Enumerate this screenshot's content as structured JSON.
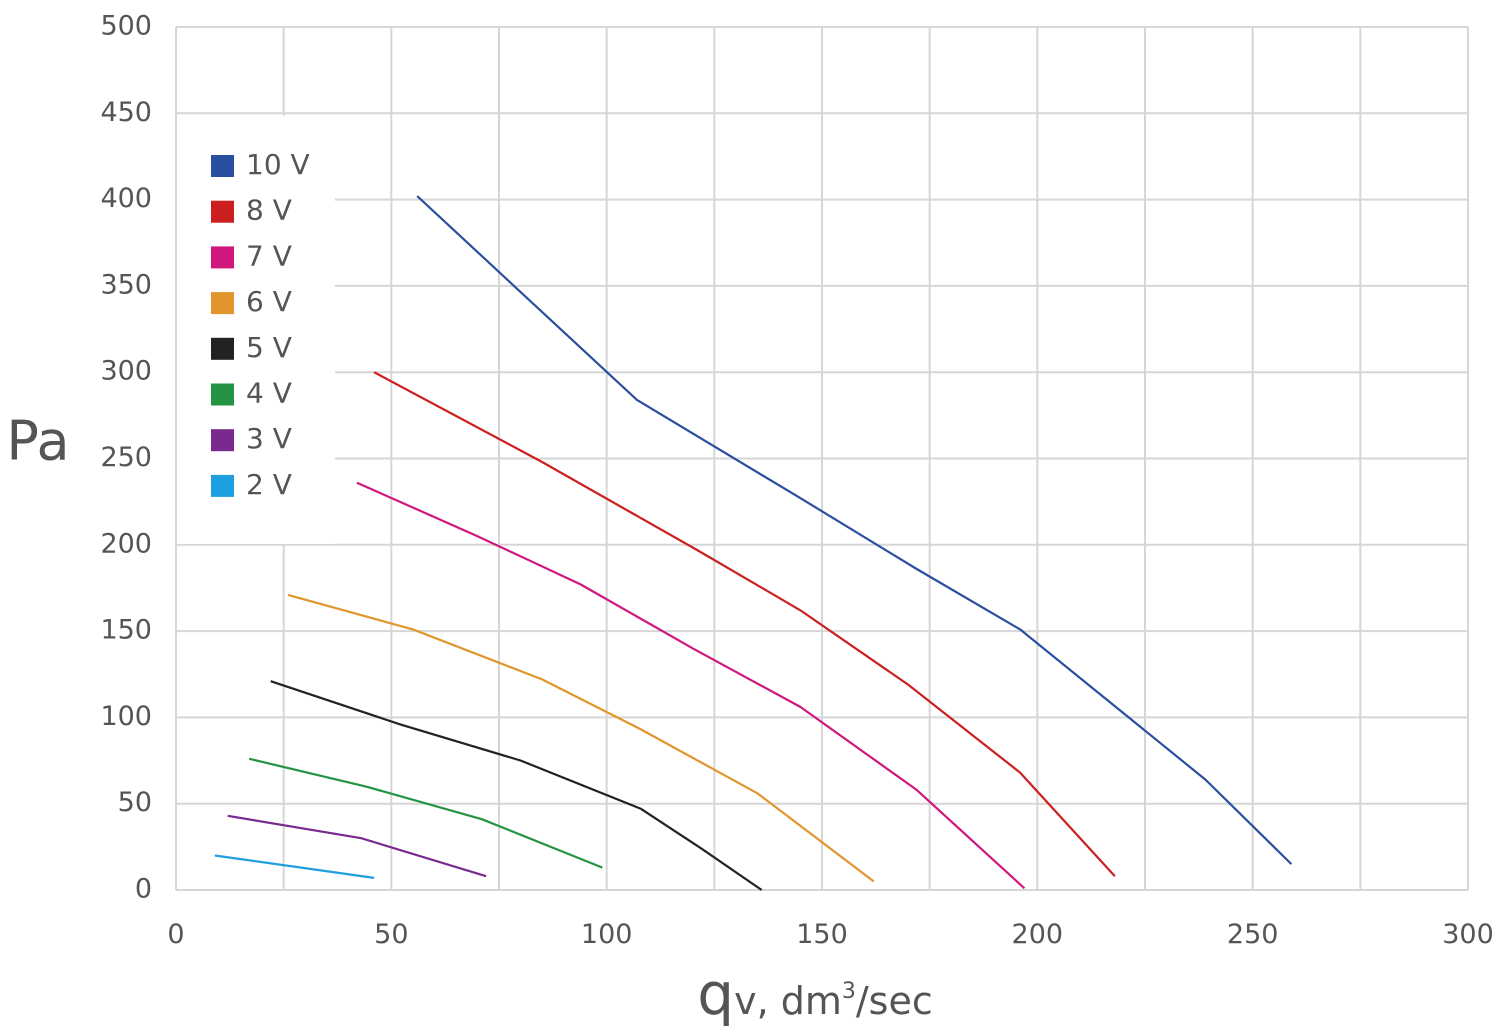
{
  "chart_data": {
    "type": "line",
    "title": "",
    "ylabel": "Pa",
    "xlabel": {
      "main": "q",
      "subscript": "v, dm",
      "superscript": "3",
      "suffix": "/sec"
    },
    "xlim": [
      0,
      300
    ],
    "ylim": [
      0,
      500
    ],
    "xticks": [
      0,
      50,
      100,
      150,
      200,
      250,
      300
    ],
    "yticks": [
      0,
      50,
      100,
      150,
      200,
      250,
      300,
      350,
      400,
      450,
      500
    ],
    "grid": true,
    "legend_position": "top-left",
    "series": [
      {
        "name": "10 V",
        "color": "#2a4fa0",
        "points": [
          [
            56,
            402
          ],
          [
            107,
            284
          ],
          [
            145,
            227
          ],
          [
            172,
            186
          ],
          [
            196,
            151
          ],
          [
            239,
            64
          ],
          [
            259,
            15
          ]
        ]
      },
      {
        "name": "8 V",
        "color": "#cc1f1f",
        "points": [
          [
            46,
            300
          ],
          [
            85,
            248
          ],
          [
            121,
            197
          ],
          [
            145,
            162
          ],
          [
            170,
            119
          ],
          [
            196,
            68
          ],
          [
            218,
            8
          ]
        ]
      },
      {
        "name": "7 V",
        "color": "#d0177e",
        "points": [
          [
            42,
            236
          ],
          [
            70,
            205
          ],
          [
            94,
            177
          ],
          [
            120,
            140
          ],
          [
            145,
            106
          ],
          [
            172,
            58
          ],
          [
            197,
            1
          ]
        ]
      },
      {
        "name": "6 V",
        "color": "#e0962b",
        "points": [
          [
            26,
            171
          ],
          [
            55,
            151
          ],
          [
            85,
            122
          ],
          [
            108,
            93
          ],
          [
            135,
            56
          ],
          [
            162,
            5
          ]
        ]
      },
      {
        "name": "5 V",
        "color": "#222222",
        "points": [
          [
            22,
            121
          ],
          [
            52,
            96
          ],
          [
            80,
            75
          ],
          [
            108,
            47
          ],
          [
            122,
            24
          ],
          [
            136,
            0
          ]
        ]
      },
      {
        "name": "4 V",
        "color": "#249443",
        "points": [
          [
            17,
            76
          ],
          [
            44,
            60
          ],
          [
            71,
            41
          ],
          [
            99,
            13
          ]
        ]
      },
      {
        "name": "3 V",
        "color": "#7a2a8f",
        "points": [
          [
            12,
            43
          ],
          [
            43,
            30
          ],
          [
            72,
            8
          ]
        ]
      },
      {
        "name": "2 V",
        "color": "#1d9fe0",
        "points": [
          [
            9,
            20
          ],
          [
            46,
            7
          ]
        ]
      }
    ]
  }
}
